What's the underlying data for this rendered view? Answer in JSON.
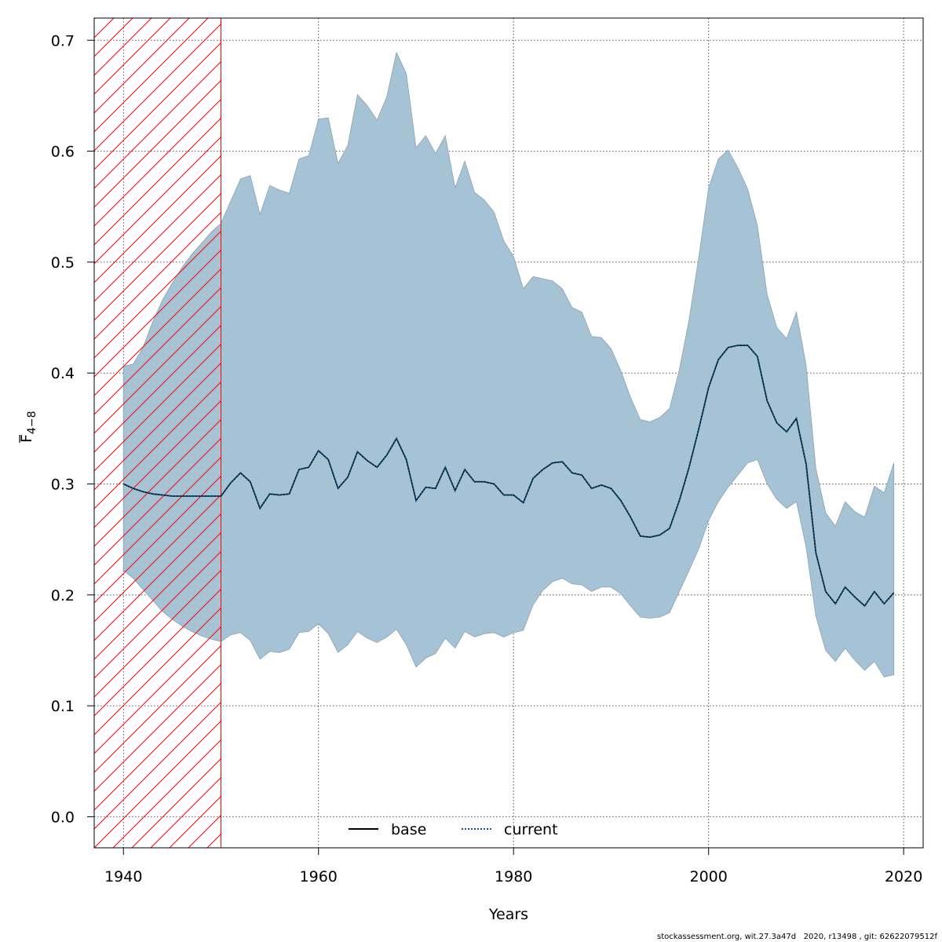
{
  "chart_data": {
    "type": "area",
    "xlabel": "Years",
    "ylabel": {
      "main": "F",
      "subscript": "4−8"
    },
    "xlim": [
      1937,
      2022
    ],
    "ylim": [
      -0.028,
      0.72
    ],
    "x_ticks": [
      1940,
      1960,
      1980,
      2000,
      2020
    ],
    "y_ticks": [
      0.0,
      0.1,
      0.2,
      0.3,
      0.4,
      0.5,
      0.6,
      0.7
    ],
    "grid": true,
    "legend": {
      "position": "bottom-center",
      "entries": [
        {
          "label": "base",
          "style": "solid",
          "color": "#000000"
        },
        {
          "label": "current",
          "style": "dotted",
          "color": "#0a5a8c"
        }
      ]
    },
    "hatched_region": {
      "x_from": 1937,
      "x_to": 1950,
      "color": "#ff0000"
    },
    "band_color": "#a5c3d5",
    "years": [
      1940,
      1941,
      1942,
      1943,
      1944,
      1945,
      1946,
      1947,
      1948,
      1949,
      1950,
      1951,
      1952,
      1953,
      1954,
      1955,
      1956,
      1957,
      1958,
      1959,
      1960,
      1961,
      1962,
      1963,
      1964,
      1965,
      1966,
      1967,
      1968,
      1969,
      1970,
      1971,
      1972,
      1973,
      1974,
      1975,
      1976,
      1977,
      1978,
      1979,
      1980,
      1981,
      1982,
      1983,
      1984,
      1985,
      1986,
      1987,
      1988,
      1989,
      1990,
      1991,
      1992,
      1993,
      1994,
      1995,
      1996,
      1997,
      1998,
      1999,
      2000,
      2001,
      2002,
      2003,
      2004,
      2005,
      2006,
      2007,
      2008,
      2009,
      2010,
      2011,
      2012,
      2013,
      2014,
      2015,
      2016,
      2017,
      2018,
      2019
    ],
    "series": [
      {
        "name": "base",
        "style": "solid",
        "color": "#000000",
        "values": [
          0.3,
          0.296,
          0.293,
          0.291,
          0.29,
          0.289,
          0.289,
          0.289,
          0.289,
          0.289,
          0.289,
          0.301,
          0.31,
          0.302,
          0.278,
          0.291,
          0.29,
          0.291,
          0.313,
          0.315,
          0.33,
          0.322,
          0.296,
          0.306,
          0.329,
          0.321,
          0.315,
          0.326,
          0.341,
          0.322,
          0.285,
          0.297,
          0.296,
          0.315,
          0.294,
          0.313,
          0.302,
          0.302,
          0.3,
          0.29,
          0.29,
          0.283,
          0.305,
          0.313,
          0.319,
          0.32,
          0.31,
          0.308,
          0.296,
          0.299,
          0.296,
          0.285,
          0.27,
          0.253,
          0.252,
          0.254,
          0.26,
          0.285,
          0.315,
          0.35,
          0.387,
          0.412,
          0.423,
          0.425,
          0.425,
          0.415,
          0.375,
          0.355,
          0.347,
          0.359,
          0.318,
          0.238,
          0.203,
          0.192,
          0.207,
          0.198,
          0.19,
          0.203,
          0.192,
          0.202
        ]
      },
      {
        "name": "current",
        "style": "dotted",
        "color": "#0a5a8c",
        "values": [
          0.3,
          0.296,
          0.293,
          0.291,
          0.29,
          0.289,
          0.289,
          0.289,
          0.289,
          0.289,
          0.289,
          0.301,
          0.31,
          0.302,
          0.278,
          0.291,
          0.29,
          0.291,
          0.313,
          0.315,
          0.33,
          0.322,
          0.296,
          0.306,
          0.329,
          0.321,
          0.315,
          0.326,
          0.341,
          0.322,
          0.285,
          0.297,
          0.296,
          0.315,
          0.294,
          0.313,
          0.302,
          0.302,
          0.3,
          0.29,
          0.29,
          0.283,
          0.305,
          0.313,
          0.319,
          0.32,
          0.31,
          0.308,
          0.296,
          0.299,
          0.296,
          0.285,
          0.27,
          0.253,
          0.252,
          0.254,
          0.26,
          0.285,
          0.315,
          0.35,
          0.387,
          0.412,
          0.423,
          0.425,
          0.425,
          0.415,
          0.375,
          0.355,
          0.347,
          0.359,
          0.318,
          0.238,
          0.203,
          0.192,
          0.207,
          0.198,
          0.19,
          0.203,
          0.192,
          0.202
        ]
      }
    ],
    "confidence_band": {
      "lower": [
        0.222,
        0.215,
        0.205,
        0.195,
        0.185,
        0.178,
        0.172,
        0.167,
        0.163,
        0.16,
        0.158,
        0.164,
        0.166,
        0.159,
        0.142,
        0.149,
        0.148,
        0.151,
        0.166,
        0.167,
        0.174,
        0.165,
        0.148,
        0.155,
        0.167,
        0.161,
        0.157,
        0.162,
        0.169,
        0.155,
        0.135,
        0.143,
        0.147,
        0.161,
        0.152,
        0.167,
        0.162,
        0.165,
        0.166,
        0.162,
        0.166,
        0.168,
        0.191,
        0.204,
        0.212,
        0.215,
        0.21,
        0.209,
        0.203,
        0.207,
        0.207,
        0.201,
        0.19,
        0.18,
        0.179,
        0.18,
        0.184,
        0.203,
        0.222,
        0.242,
        0.267,
        0.284,
        0.297,
        0.308,
        0.319,
        0.322,
        0.3,
        0.286,
        0.278,
        0.284,
        0.243,
        0.181,
        0.15,
        0.14,
        0.152,
        0.141,
        0.132,
        0.14,
        0.126,
        0.128
      ],
      "upper": [
        0.406,
        0.408,
        0.423,
        0.446,
        0.466,
        0.481,
        0.495,
        0.507,
        0.517,
        0.527,
        0.535,
        0.555,
        0.575,
        0.578,
        0.543,
        0.569,
        0.565,
        0.562,
        0.593,
        0.596,
        0.629,
        0.63,
        0.589,
        0.605,
        0.651,
        0.641,
        0.628,
        0.649,
        0.689,
        0.67,
        0.603,
        0.614,
        0.598,
        0.614,
        0.567,
        0.591,
        0.563,
        0.556,
        0.545,
        0.519,
        0.505,
        0.476,
        0.487,
        0.485,
        0.483,
        0.476,
        0.459,
        0.455,
        0.433,
        0.432,
        0.422,
        0.402,
        0.378,
        0.358,
        0.356,
        0.36,
        0.368,
        0.403,
        0.448,
        0.505,
        0.567,
        0.593,
        0.601,
        0.585,
        0.566,
        0.533,
        0.471,
        0.441,
        0.431,
        0.455,
        0.407,
        0.314,
        0.274,
        0.262,
        0.284,
        0.275,
        0.27,
        0.298,
        0.292,
        0.319
      ]
    }
  },
  "footer": {
    "text": "stockassessment.org, wit.27.3a47d   2020, r13498 , git: 62622079512f"
  }
}
